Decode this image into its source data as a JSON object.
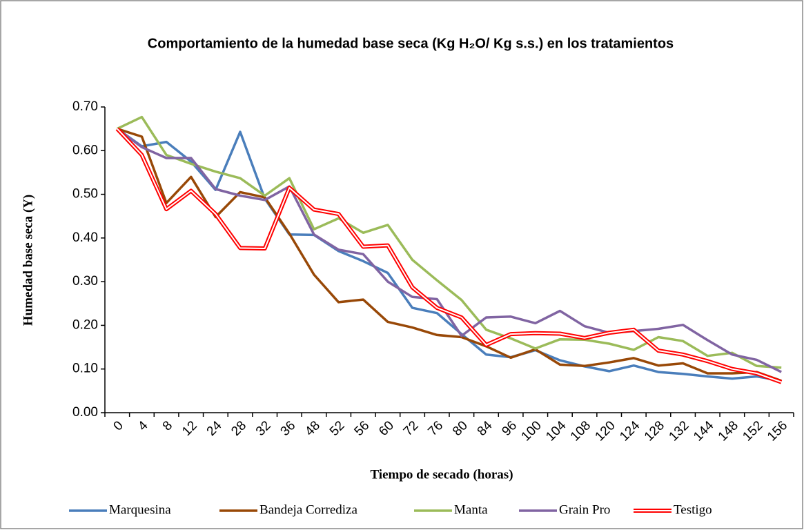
{
  "chart_data": {
    "type": "line",
    "title": "Comportamiento de la humedad base seca (Kg H₂O/ Kg s.s.) en los tratamientos",
    "x_label": "Tiempo de secado (horas)",
    "y_label": "Humedad base seca (Y)",
    "categories": [
      "0",
      "4",
      "8",
      "12",
      "24",
      "28",
      "32",
      "36",
      "48",
      "52",
      "56",
      "60",
      "72",
      "76",
      "80",
      "84",
      "96",
      "100",
      "104",
      "108",
      "120",
      "124",
      "128",
      "132",
      "144",
      "148",
      "152",
      "156"
    ],
    "ylim": [
      0,
      0.7
    ],
    "yticks": [
      {
        "value": 0,
        "label": "0.00"
      },
      {
        "value": 0.1,
        "label": "0.10"
      },
      {
        "value": 0.2,
        "label": "0.20"
      },
      {
        "value": 0.3,
        "label": "0.30"
      },
      {
        "value": 0.4,
        "label": "0.40"
      },
      {
        "value": 0.5,
        "label": "0.50"
      },
      {
        "value": 0.6,
        "label": "0.60"
      },
      {
        "value": 0.7,
        "label": "0.70"
      }
    ],
    "grid": false,
    "legend": "bottom",
    "series": [
      {
        "name": "Marquesina",
        "color": "#4a7ebb",
        "values": [
          0.65,
          0.61,
          0.62,
          0.575,
          0.51,
          0.643,
          0.49,
          0.408,
          0.407,
          0.37,
          0.347,
          0.32,
          0.24,
          0.228,
          0.18,
          0.133,
          0.127,
          0.143,
          0.12,
          0.106,
          0.095,
          0.108,
          0.093,
          0.089,
          0.083,
          0.078,
          0.083,
          0.073
        ]
      },
      {
        "name": "Bandeja Corrediza",
        "color": "#984807",
        "values": [
          0.65,
          0.632,
          0.48,
          0.54,
          0.448,
          0.505,
          0.493,
          0.41,
          0.316,
          0.253,
          0.259,
          0.208,
          0.195,
          0.178,
          0.173,
          0.152,
          0.126,
          0.145,
          0.11,
          0.107,
          0.115,
          0.125,
          0.108,
          0.113,
          0.09,
          0.09,
          0.093,
          0.073
        ]
      },
      {
        "name": "Manta",
        "color": "#9bbb59",
        "values": [
          0.65,
          0.677,
          0.59,
          0.57,
          0.552,
          0.537,
          0.497,
          0.537,
          0.42,
          0.445,
          0.412,
          0.43,
          0.35,
          0.303,
          0.258,
          0.19,
          0.17,
          0.147,
          0.168,
          0.167,
          0.158,
          0.144,
          0.173,
          0.164,
          0.13,
          0.137,
          0.107,
          0.103
        ]
      },
      {
        "name": "Grain Pro",
        "color": "#8064a2",
        "values": [
          0.65,
          0.608,
          0.583,
          0.583,
          0.512,
          0.497,
          0.487,
          0.518,
          0.408,
          0.373,
          0.363,
          0.3,
          0.265,
          0.26,
          0.176,
          0.218,
          0.22,
          0.205,
          0.233,
          0.198,
          0.183,
          0.187,
          0.192,
          0.201,
          0.166,
          0.133,
          0.121,
          0.093
        ]
      },
      {
        "name": "Testigo",
        "color": "#ff0000",
        "double": true,
        "values": [
          0.65,
          0.59,
          0.466,
          0.508,
          0.455,
          0.377,
          0.376,
          0.515,
          0.465,
          0.455,
          0.38,
          0.383,
          0.287,
          0.24,
          0.218,
          0.155,
          0.18,
          0.182,
          0.181,
          0.171,
          0.183,
          0.19,
          0.142,
          0.133,
          0.118,
          0.1,
          0.09,
          0.07
        ]
      }
    ]
  }
}
